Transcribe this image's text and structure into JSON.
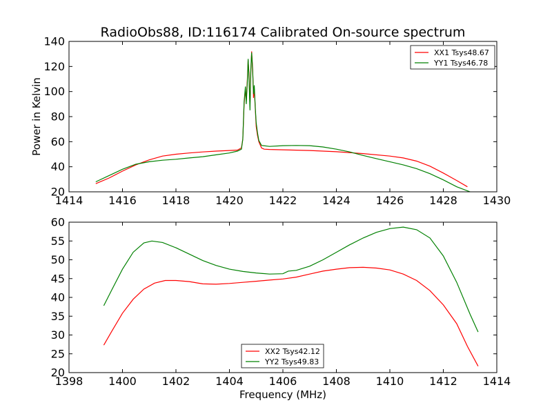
{
  "title": "RadioObs88, ID:116174 Calibrated On-source spectrum",
  "chart_data": [
    {
      "type": "line",
      "xlabel": "",
      "ylabel": "Power in Kelvin",
      "xlim": [
        1414,
        1430
      ],
      "ylim": [
        20,
        140
      ],
      "xticks": [
        1414,
        1416,
        1418,
        1420,
        1422,
        1424,
        1426,
        1428,
        1430
      ],
      "yticks": [
        20,
        40,
        60,
        80,
        100,
        120,
        140
      ],
      "legend_position": "top-right",
      "series": [
        {
          "name": "XX1 Tsys48.67",
          "color": "#ff0000",
          "points": [
            [
              1415.0,
              26.5
            ],
            [
              1415.5,
              31.0
            ],
            [
              1416.0,
              36.5
            ],
            [
              1416.5,
              41.5
            ],
            [
              1417.0,
              45.5
            ],
            [
              1417.5,
              48.5
            ],
            [
              1418.0,
              50.0
            ],
            [
              1418.5,
              51.0
            ],
            [
              1419.0,
              51.8
            ],
            [
              1419.5,
              52.5
            ],
            [
              1420.0,
              53.0
            ],
            [
              1420.3,
              53.3
            ],
            [
              1420.45,
              55.0
            ],
            [
              1420.5,
              62.0
            ],
            [
              1420.55,
              90.0
            ],
            [
              1420.6,
              102.0
            ],
            [
              1420.63,
              93.0
            ],
            [
              1420.67,
              110.0
            ],
            [
              1420.7,
              125.0
            ],
            [
              1420.73,
              115.0
            ],
            [
              1420.77,
              88.0
            ],
            [
              1420.8,
              115.0
            ],
            [
              1420.83,
              132.0
            ],
            [
              1420.87,
              118.0
            ],
            [
              1420.9,
              95.0
            ],
            [
              1420.93,
              102.0
            ],
            [
              1420.97,
              85.0
            ],
            [
              1421.0,
              72.0
            ],
            [
              1421.05,
              65.0
            ],
            [
              1421.1,
              60.0
            ],
            [
              1421.2,
              55.0
            ],
            [
              1421.3,
              54.0
            ],
            [
              1421.5,
              53.8
            ],
            [
              1422.0,
              53.5
            ],
            [
              1423.0,
              53.0
            ],
            [
              1424.0,
              52.0
            ],
            [
              1425.0,
              50.5
            ],
            [
              1426.0,
              48.5
            ],
            [
              1426.5,
              47.0
            ],
            [
              1427.0,
              44.5
            ],
            [
              1427.5,
              40.5
            ],
            [
              1428.0,
              35.0
            ],
            [
              1428.5,
              29.0
            ],
            [
              1428.9,
              24.0
            ]
          ]
        },
        {
          "name": "YY1 Tsys46.78",
          "color": "#008000",
          "points": [
            [
              1415.0,
              28.0
            ],
            [
              1415.5,
              33.0
            ],
            [
              1416.0,
              38.0
            ],
            [
              1416.5,
              42.0
            ],
            [
              1417.0,
              44.0
            ],
            [
              1417.5,
              45.2
            ],
            [
              1418.0,
              46.0
            ],
            [
              1418.5,
              47.0
            ],
            [
              1419.0,
              48.0
            ],
            [
              1419.5,
              49.5
            ],
            [
              1420.0,
              51.0
            ],
            [
              1420.3,
              52.5
            ],
            [
              1420.45,
              54.0
            ],
            [
              1420.5,
              62.0
            ],
            [
              1420.55,
              92.0
            ],
            [
              1420.6,
              104.0
            ],
            [
              1420.63,
              90.0
            ],
            [
              1420.67,
              108.0
            ],
            [
              1420.7,
              126.0
            ],
            [
              1420.73,
              112.0
            ],
            [
              1420.77,
              85.0
            ],
            [
              1420.8,
              118.0
            ],
            [
              1420.83,
              131.0
            ],
            [
              1420.87,
              116.0
            ],
            [
              1420.9,
              98.0
            ],
            [
              1420.93,
              105.0
            ],
            [
              1420.97,
              86.0
            ],
            [
              1421.0,
              75.0
            ],
            [
              1421.05,
              67.0
            ],
            [
              1421.1,
              61.0
            ],
            [
              1421.2,
              57.0
            ],
            [
              1421.5,
              56.2
            ],
            [
              1422.0,
              56.8
            ],
            [
              1422.5,
              57.0
            ],
            [
              1423.0,
              56.8
            ],
            [
              1423.5,
              55.8
            ],
            [
              1424.0,
              54.0
            ],
            [
              1424.5,
              51.8
            ],
            [
              1425.0,
              49.0
            ],
            [
              1425.5,
              46.5
            ],
            [
              1426.0,
              44.0
            ],
            [
              1426.5,
              41.5
            ],
            [
              1427.0,
              38.5
            ],
            [
              1427.5,
              34.5
            ],
            [
              1428.0,
              29.5
            ],
            [
              1428.5,
              24.0
            ],
            [
              1429.0,
              20.0
            ]
          ]
        }
      ]
    },
    {
      "type": "line",
      "xlabel": "Frequency (MHz)",
      "ylabel": "",
      "xlim": [
        1398,
        1414
      ],
      "ylim": [
        20,
        60
      ],
      "xticks": [
        1398,
        1400,
        1402,
        1404,
        1406,
        1408,
        1410,
        1412,
        1414
      ],
      "yticks": [
        20,
        25,
        30,
        35,
        40,
        45,
        50,
        55,
        60
      ],
      "legend_position": "bottom-center",
      "series": [
        {
          "name": "XX2 Tsys42.12",
          "color": "#ff0000",
          "points": [
            [
              1399.3,
              27.3
            ],
            [
              1399.6,
              31.0
            ],
            [
              1400.0,
              35.8
            ],
            [
              1400.4,
              39.5
            ],
            [
              1400.8,
              42.2
            ],
            [
              1401.2,
              43.8
            ],
            [
              1401.6,
              44.5
            ],
            [
              1402.0,
              44.5
            ],
            [
              1402.5,
              44.2
            ],
            [
              1403.0,
              43.6
            ],
            [
              1403.5,
              43.5
            ],
            [
              1404.0,
              43.7
            ],
            [
              1404.5,
              44.0
            ],
            [
              1405.0,
              44.3
            ],
            [
              1405.5,
              44.6
            ],
            [
              1406.0,
              44.9
            ],
            [
              1406.5,
              45.4
            ],
            [
              1407.0,
              46.2
            ],
            [
              1407.5,
              47.0
            ],
            [
              1408.0,
              47.5
            ],
            [
              1408.5,
              47.9
            ],
            [
              1409.0,
              48.0
            ],
            [
              1409.5,
              47.8
            ],
            [
              1410.0,
              47.3
            ],
            [
              1410.5,
              46.2
            ],
            [
              1411.0,
              44.5
            ],
            [
              1411.5,
              41.8
            ],
            [
              1412.0,
              38.0
            ],
            [
              1412.5,
              33.0
            ],
            [
              1412.9,
              27.0
            ],
            [
              1413.3,
              21.7
            ]
          ]
        },
        {
          "name": "YY2 Tsys49.83",
          "color": "#008000",
          "points": [
            [
              1399.3,
              37.8
            ],
            [
              1399.6,
              42.0
            ],
            [
              1400.0,
              47.5
            ],
            [
              1400.4,
              52.0
            ],
            [
              1400.8,
              54.5
            ],
            [
              1401.1,
              55.0
            ],
            [
              1401.5,
              54.6
            ],
            [
              1402.0,
              53.2
            ],
            [
              1402.5,
              51.5
            ],
            [
              1403.0,
              49.8
            ],
            [
              1403.5,
              48.5
            ],
            [
              1404.0,
              47.5
            ],
            [
              1404.5,
              46.9
            ],
            [
              1405.0,
              46.5
            ],
            [
              1405.5,
              46.2
            ],
            [
              1406.0,
              46.3
            ],
            [
              1406.2,
              47.0
            ],
            [
              1406.5,
              47.2
            ],
            [
              1407.0,
              48.3
            ],
            [
              1407.5,
              50.0
            ],
            [
              1408.0,
              52.0
            ],
            [
              1408.5,
              54.0
            ],
            [
              1409.0,
              55.8
            ],
            [
              1409.5,
              57.3
            ],
            [
              1410.0,
              58.3
            ],
            [
              1410.5,
              58.7
            ],
            [
              1411.0,
              58.0
            ],
            [
              1411.5,
              55.8
            ],
            [
              1412.0,
              51.0
            ],
            [
              1412.5,
              44.0
            ],
            [
              1413.0,
              35.5
            ],
            [
              1413.3,
              30.8
            ]
          ]
        }
      ]
    }
  ]
}
